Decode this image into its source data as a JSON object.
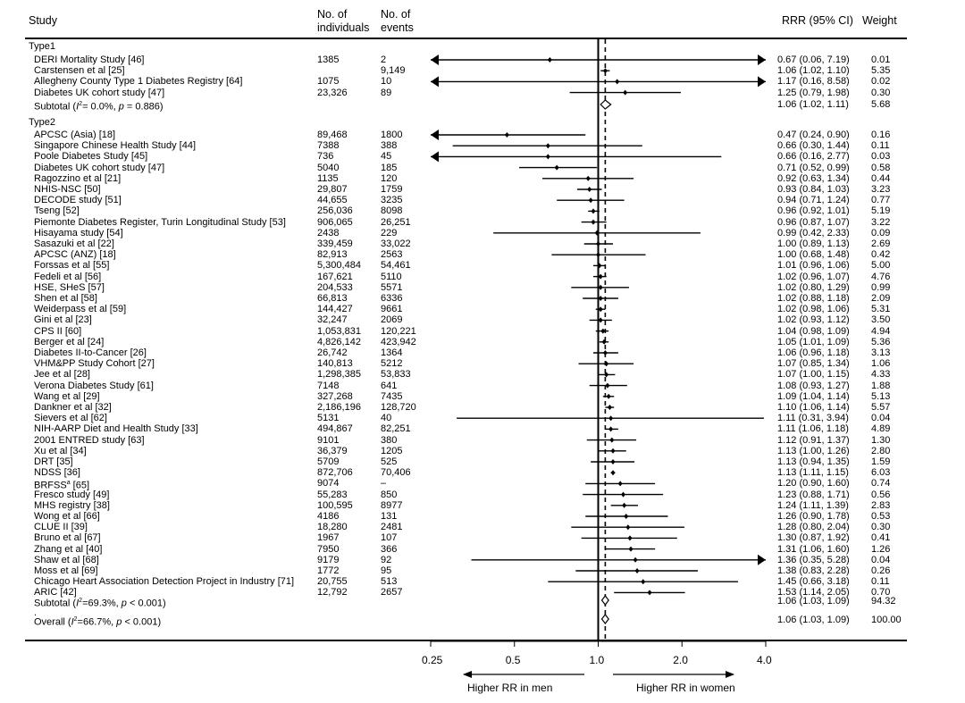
{
  "header": {
    "study": "Study",
    "individuals_l1": "No. of",
    "individuals_l2": "individuals",
    "events_l1": "No. of",
    "events_l2": "events",
    "rrr": "RRR (95% CI)",
    "weight": "Weight"
  },
  "groups": [
    {
      "label": "Type1"
    },
    {
      "label": "Type2"
    }
  ],
  "subtotals": [
    {
      "label_pre": "Subtotal  (",
      "label_i2": "I",
      "label_sup": "2",
      "label_post": "= 0.0%, ",
      "label_p": "p",
      "label_rest": " = 0.886)",
      "ci": "1.06 (1.02, 1.11)",
      "weight": "5.68"
    },
    {
      "label_pre": "Subtotal  (",
      "label_i2": "I",
      "label_sup": "2",
      "label_post": "=69.3%, ",
      "label_p": "p",
      "label_rest": " < 0.001)",
      "ci": "1.06 (1.03, 1.09)",
      "weight": "94.32"
    }
  ],
  "overall": {
    "label_pre": "Overall  (",
    "label_i2": "I",
    "label_sup": "2",
    "label_post": "=66.7%, ",
    "label_p": "p",
    "label_rest": " < 0.001)",
    "ci": "1.06 (1.03, 1.09)",
    "weight": "100.00"
  },
  "dot_marker": ".",
  "axis": {
    "ticks": [
      "0.25",
      "0.5",
      "1.0",
      "2.0",
      "4.0"
    ],
    "left_label": "Higher RR in men",
    "right_label": "Higher RR in women"
  },
  "chart_data": {
    "type": "forest",
    "scale": "log2",
    "xlim": [
      0.25,
      4.0
    ],
    "null_value": 1.0,
    "pooled_estimate": 1.06,
    "tick_values": [
      0.25,
      0.5,
      1.0,
      2.0,
      4.0
    ],
    "studies": [
      {
        "group": 0,
        "study": "DERI Mortality Study [46]",
        "n": "1385",
        "events": "2",
        "rr": 0.67,
        "lo": 0.06,
        "hi": 7.19,
        "ci": "0.67 (0.06, 7.19)",
        "weight": "0.01"
      },
      {
        "group": 0,
        "study": "Carstensen et al [25]",
        "n": "",
        "events": "9,149",
        "rr": 1.06,
        "lo": 1.02,
        "hi": 1.1,
        "ci": "1.06 (1.02, 1.10)",
        "weight": "5.35"
      },
      {
        "group": 0,
        "study": "Allegheny County Type 1 Diabetes Registry [64]",
        "n": "1075",
        "events": "10",
        "rr": 1.17,
        "lo": 0.16,
        "hi": 8.58,
        "ci": "1.17 (0.16, 8.58)",
        "weight": "0.02"
      },
      {
        "group": 0,
        "study": "Diabetes UK cohort study [47]",
        "n": "23,326",
        "events": "89",
        "rr": 1.25,
        "lo": 0.79,
        "hi": 1.98,
        "ci": "1.25 (0.79, 1.98)",
        "weight": "0.30"
      },
      {
        "group": 1,
        "study": "APCSC (Asia) [18]",
        "n": "89,468",
        "events": "1800",
        "rr": 0.47,
        "lo": 0.24,
        "hi": 0.9,
        "ci": "0.47 (0.24, 0.90)",
        "weight": "0.16"
      },
      {
        "group": 1,
        "study": "Singapore Chinese Health Study [44]",
        "n": "7388",
        "events": "388",
        "rr": 0.66,
        "lo": 0.3,
        "hi": 1.44,
        "ci": "0.66 (0.30, 1.44)",
        "weight": "0.11"
      },
      {
        "group": 1,
        "study": "Poole Diabetes Study [45]",
        "n": "736",
        "events": "45",
        "rr": 0.66,
        "lo": 0.16,
        "hi": 2.77,
        "ci": "0.66 (0.16, 2.77)",
        "weight": "0.03"
      },
      {
        "group": 1,
        "study": "Diabetes UK cohort study [47]",
        "n": "5040",
        "events": "185",
        "rr": 0.71,
        "lo": 0.52,
        "hi": 0.99,
        "ci": "0.71 (0.52, 0.99)",
        "weight": "0.58"
      },
      {
        "group": 1,
        "study": "Ragozzino et al [21]",
        "n": "1135",
        "events": "120",
        "rr": 0.92,
        "lo": 0.63,
        "hi": 1.34,
        "ci": "0.92 (0.63, 1.34)",
        "weight": "0.44"
      },
      {
        "group": 1,
        "study": "NHIS-NSC [50]",
        "n": "29,807",
        "events": "1759",
        "rr": 0.93,
        "lo": 0.84,
        "hi": 1.03,
        "ci": "0.93 (0.84, 1.03)",
        "weight": "3.23"
      },
      {
        "group": 1,
        "study": "DECODE study [51]",
        "n": "44,655",
        "events": "3235",
        "rr": 0.94,
        "lo": 0.71,
        "hi": 1.24,
        "ci": "0.94 (0.71, 1.24)",
        "weight": "0.77"
      },
      {
        "group": 1,
        "study": "Tseng [52]",
        "n": "256,036",
        "events": "8098",
        "rr": 0.96,
        "lo": 0.92,
        "hi": 1.01,
        "ci": "0.96 (0.92, 1.01)",
        "weight": "5.19"
      },
      {
        "group": 1,
        "study": "Piemonte Diabetes Register, Turin Longitudinal Study [53]",
        "n": "906,065",
        "events": "26,251",
        "rr": 0.96,
        "lo": 0.87,
        "hi": 1.07,
        "ci": "0.96 (0.87, 1.07)",
        "weight": "3.22"
      },
      {
        "group": 1,
        "study": "Hisayama study [54]",
        "n": "2438",
        "events": "229",
        "rr": 0.99,
        "lo": 0.42,
        "hi": 2.33,
        "ci": "0.99 (0.42, 2.33)",
        "weight": "0.09"
      },
      {
        "group": 1,
        "study": "Sasazuki et al [22]",
        "n": "339,459",
        "events": "33,022",
        "rr": 1.0,
        "lo": 0.89,
        "hi": 1.13,
        "ci": "1.00 (0.89, 1.13)",
        "weight": "2.69"
      },
      {
        "group": 1,
        "study": "APCSC (ANZ) [18]",
        "n": "82,913",
        "events": "2563",
        "rr": 1.0,
        "lo": 0.68,
        "hi": 1.48,
        "ci": "1.00 (0.68, 1.48)",
        "weight": "0.42"
      },
      {
        "group": 1,
        "study": "Forssas et al [55]",
        "n": "5,300,484",
        "events": "54,461",
        "rr": 1.01,
        "lo": 0.96,
        "hi": 1.06,
        "ci": "1.01 (0.96, 1.06)",
        "weight": "5.00"
      },
      {
        "group": 1,
        "study": "Fedeli et al [56]",
        "n": "167,621",
        "events": "5110",
        "rr": 1.02,
        "lo": 0.96,
        "hi": 1.07,
        "ci": "1.02 (0.96, 1.07)",
        "weight": "4.76"
      },
      {
        "group": 1,
        "study": "HSE, SHeS [57]",
        "n": "204,533",
        "events": "5571",
        "rr": 1.02,
        "lo": 0.8,
        "hi": 1.29,
        "ci": "1.02 (0.80, 1.29)",
        "weight": "0.99"
      },
      {
        "group": 1,
        "study": "Shen et al [58]",
        "n": "66,813",
        "events": "6336",
        "rr": 1.02,
        "lo": 0.88,
        "hi": 1.18,
        "ci": "1.02 (0.88, 1.18)",
        "weight": "2.09"
      },
      {
        "group": 1,
        "study": "Weiderpass et al [59]",
        "n": "144,427",
        "events": "9661",
        "rr": 1.02,
        "lo": 0.98,
        "hi": 1.06,
        "ci": "1.02 (0.98, 1.06)",
        "weight": "5.31"
      },
      {
        "group": 1,
        "study": "Gini et al [23]",
        "n": "32,247",
        "events": "2069",
        "rr": 1.02,
        "lo": 0.93,
        "hi": 1.12,
        "ci": "1.02 (0.93, 1.12)",
        "weight": "3.50"
      },
      {
        "group": 1,
        "study": "CPS II [60]",
        "n": "1,053,831",
        "events": "120,221",
        "rr": 1.04,
        "lo": 0.98,
        "hi": 1.09,
        "ci": "1.04 (0.98, 1.09)",
        "weight": "4.94"
      },
      {
        "group": 1,
        "study": "Berger et al [24]",
        "n": "4,826,142",
        "events": "423,942",
        "rr": 1.05,
        "lo": 1.01,
        "hi": 1.09,
        "ci": "1.05 (1.01, 1.09)",
        "weight": "5.36"
      },
      {
        "group": 1,
        "study": "Diabetes II-to-Cancer [26]",
        "n": "26,742",
        "events": "1364",
        "rr": 1.06,
        "lo": 0.96,
        "hi": 1.18,
        "ci": "1.06 (0.96, 1.18)",
        "weight": "3.13"
      },
      {
        "group": 1,
        "study": "VHM&PP Study Cohort [27]",
        "n": "140,813",
        "events": "5212",
        "rr": 1.07,
        "lo": 0.85,
        "hi": 1.34,
        "ci": "1.07 (0.85, 1.34)",
        "weight": "1.06"
      },
      {
        "group": 1,
        "study": "Jee et al [28]",
        "n": "1,298,385",
        "events": "53,833",
        "rr": 1.07,
        "lo": 1.0,
        "hi": 1.15,
        "ci": "1.07 (1.00, 1.15)",
        "weight": "4.33"
      },
      {
        "group": 1,
        "study": "Verona Diabetes Study [61]",
        "n": "7148",
        "events": "641",
        "rr": 1.08,
        "lo": 0.93,
        "hi": 1.27,
        "ci": "1.08 (0.93, 1.27)",
        "weight": "1.88"
      },
      {
        "group": 1,
        "study": "Wang et al [29]",
        "n": "327,268",
        "events": "7435",
        "rr": 1.09,
        "lo": 1.04,
        "hi": 1.14,
        "ci": "1.09 (1.04, 1.14)",
        "weight": "5.13"
      },
      {
        "group": 1,
        "study": "Dankner et al [32]",
        "n": "2,186,196",
        "events": "128,720",
        "rr": 1.1,
        "lo": 1.06,
        "hi": 1.14,
        "ci": "1.10 (1.06, 1.14)",
        "weight": "5.57"
      },
      {
        "group": 1,
        "study": "Sievers et al [62]",
        "n": "5131",
        "events": "40",
        "rr": 1.11,
        "lo": 0.31,
        "hi": 3.94,
        "ci": "1.11 (0.31, 3.94)",
        "weight": "0.04"
      },
      {
        "group": 1,
        "study": "NIH-AARP Diet and Health Study [33]",
        "n": "494,867",
        "events": "82,251",
        "rr": 1.11,
        "lo": 1.06,
        "hi": 1.18,
        "ci": "1.11 (1.06, 1.18)",
        "weight": "4.89"
      },
      {
        "group": 1,
        "study": "2001 ENTRED study [63]",
        "n": "9101",
        "events": "380",
        "rr": 1.12,
        "lo": 0.91,
        "hi": 1.37,
        "ci": "1.12 (0.91, 1.37)",
        "weight": "1.30"
      },
      {
        "group": 1,
        "study": "Xu et al [34]",
        "n": "36,379",
        "events": "1205",
        "rr": 1.13,
        "lo": 1.0,
        "hi": 1.26,
        "ci": "1.13 (1.00, 1.26)",
        "weight": "2.80"
      },
      {
        "group": 1,
        "study": "DRT [35]",
        "n": "5709",
        "events": "525",
        "rr": 1.13,
        "lo": 0.94,
        "hi": 1.35,
        "ci": "1.13 (0.94, 1.35)",
        "weight": "1.59"
      },
      {
        "group": 1,
        "study": "NDSS [36]",
        "n": "872,706",
        "events": "70,406",
        "rr": 1.13,
        "lo": 1.11,
        "hi": 1.15,
        "ci": "1.13 (1.11, 1.15)",
        "weight": "6.03"
      },
      {
        "group": 1,
        "study": "BRFSS",
        "study_sup": "a",
        "study_ref": " [65]",
        "n": "9074",
        "events": "–",
        "rr": 1.2,
        "lo": 0.9,
        "hi": 1.6,
        "ci": "1.20 (0.90, 1.60)",
        "weight": "0.74"
      },
      {
        "group": 1,
        "study": "Fresco study [49]",
        "n": "55,283",
        "events": "850",
        "rr": 1.23,
        "lo": 0.88,
        "hi": 1.71,
        "ci": "1.23 (0.88, 1.71)",
        "weight": "0.56"
      },
      {
        "group": 1,
        "study": "MHS registry [38]",
        "n": "100,595",
        "events": "8977",
        "rr": 1.24,
        "lo": 1.11,
        "hi": 1.39,
        "ci": "1.24 (1.11, 1.39)",
        "weight": "2.83"
      },
      {
        "group": 1,
        "study": "Wong et al [66]",
        "n": "4186",
        "events": "131",
        "rr": 1.26,
        "lo": 0.9,
        "hi": 1.78,
        "ci": "1.26 (0.90, 1.78)",
        "weight": "0.53"
      },
      {
        "group": 1,
        "study": "CLUE II [39]",
        "n": "18,280",
        "events": "2481",
        "rr": 1.28,
        "lo": 0.8,
        "hi": 2.04,
        "ci": "1.28 (0.80, 2.04)",
        "weight": "0.30"
      },
      {
        "group": 1,
        "study": "Bruno et al [67]",
        "n": "1967",
        "events": "107",
        "rr": 1.3,
        "lo": 0.87,
        "hi": 1.92,
        "ci": "1.30 (0.87, 1.92)",
        "weight": "0.41"
      },
      {
        "group": 1,
        "study": "Zhang et al [40]",
        "n": "7950",
        "events": "366",
        "rr": 1.31,
        "lo": 1.06,
        "hi": 1.6,
        "ci": "1.31 (1.06, 1.60)",
        "weight": "1.26"
      },
      {
        "group": 1,
        "study": "Shaw et al [68]",
        "n": "9179",
        "events": "92",
        "rr": 1.36,
        "lo": 0.35,
        "hi": 5.28,
        "ci": "1.36 (0.35, 5.28)",
        "weight": "0.04"
      },
      {
        "group": 1,
        "study": "Moss et al [69]",
        "n": "1772",
        "events": "95",
        "rr": 1.38,
        "lo": 0.83,
        "hi": 2.28,
        "ci": "1.38 (0.83, 2.28)",
        "weight": "0.26"
      },
      {
        "group": 1,
        "study": "Chicago Heart Association Detection Project in Industry [71]",
        "n": "20,755",
        "events": "513",
        "rr": 1.45,
        "lo": 0.66,
        "hi": 3.18,
        "ci": "1.45 (0.66, 3.18)",
        "weight": "0.11"
      },
      {
        "group": 1,
        "study": "ARIC [42]",
        "n": "12,792",
        "events": "2657",
        "rr": 1.53,
        "lo": 1.14,
        "hi": 2.05,
        "ci": "1.53 (1.14, 2.05)",
        "weight": "0.70"
      }
    ],
    "pooled": [
      {
        "label": "Subtotal Type1",
        "rr": 1.06,
        "lo": 1.02,
        "hi": 1.11
      },
      {
        "label": "Subtotal Type2",
        "rr": 1.06,
        "lo": 1.03,
        "hi": 1.09
      },
      {
        "label": "Overall",
        "rr": 1.06,
        "lo": 1.03,
        "hi": 1.09
      }
    ]
  }
}
